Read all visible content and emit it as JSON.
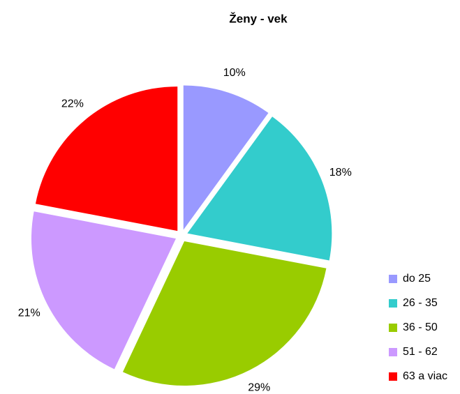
{
  "chart_data": {
    "type": "pie",
    "title": "Ženy - vek",
    "categories": [
      "do 25",
      "26 - 35",
      "36 - 50",
      "51 - 62",
      "63 a viac"
    ],
    "values": [
      10,
      18,
      29,
      21,
      22
    ],
    "value_labels": [
      "10%",
      "18%",
      "29%",
      "21%",
      "22%"
    ],
    "colors": [
      "#9999ff",
      "#33cccc",
      "#99cc00",
      "#cc99ff",
      "#ff0000"
    ],
    "legend": "right"
  }
}
